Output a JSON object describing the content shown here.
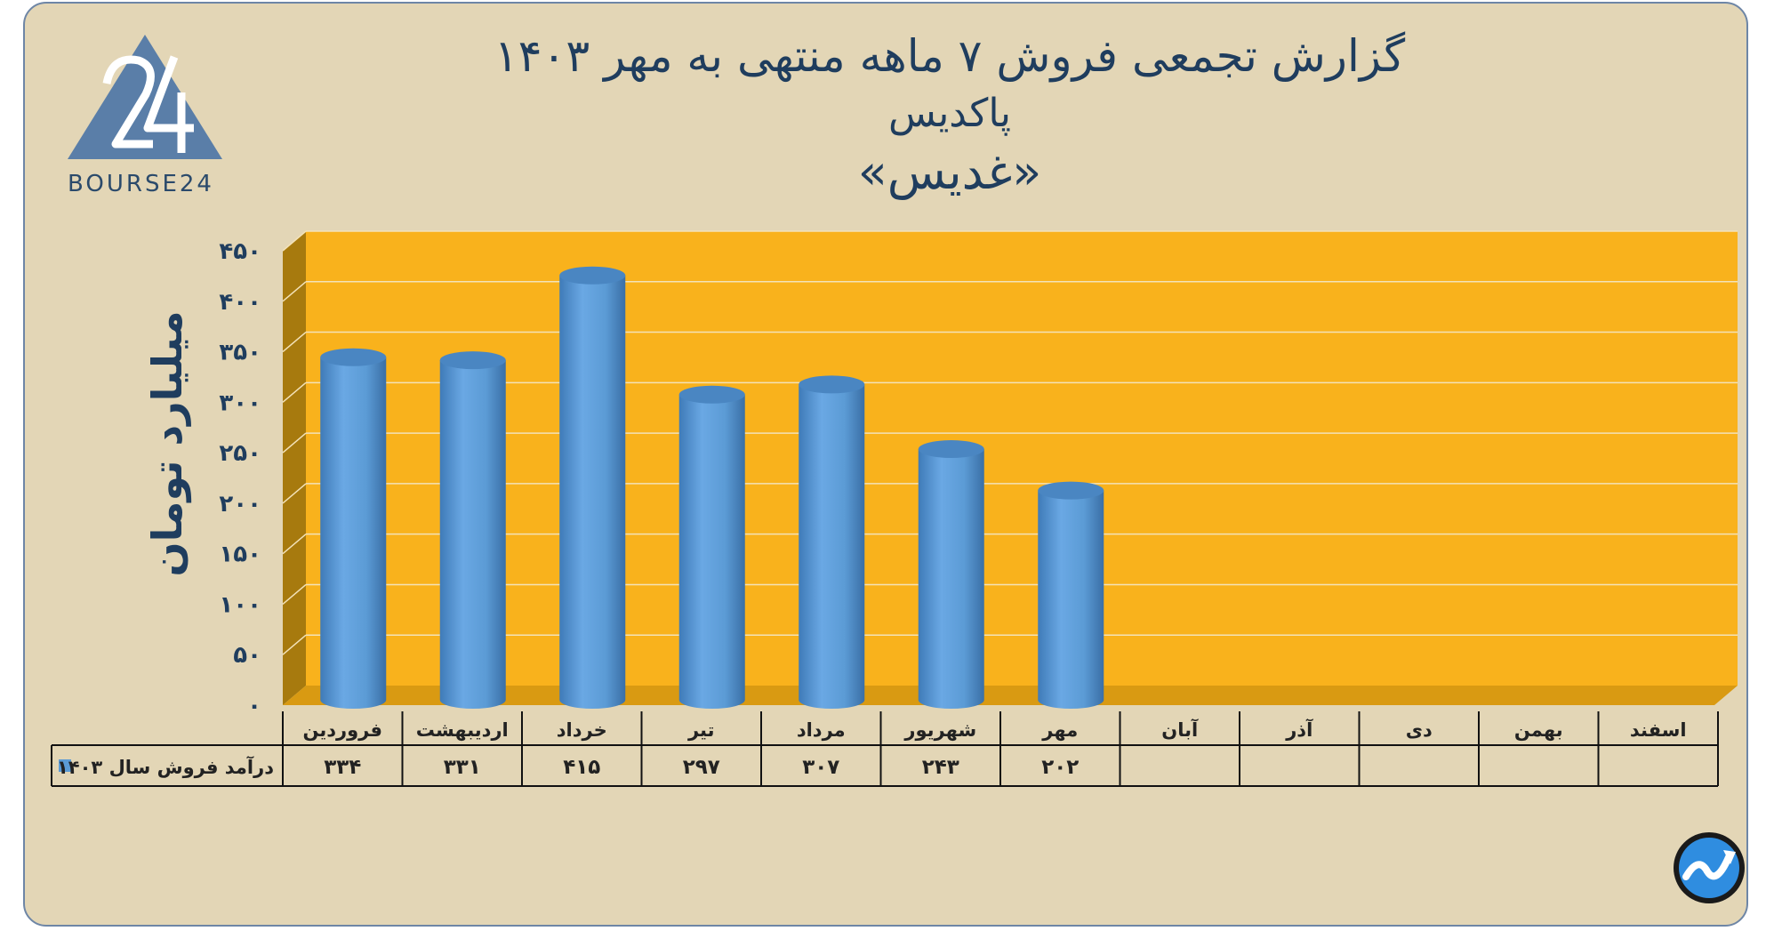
{
  "titles": {
    "line1": "گزارش تجمعی فروش ۷ ماهه منتهی به مهر ۱۴۰۳",
    "line2": "پاکدیس",
    "line3": "«غدیس»"
  },
  "brand": {
    "logo_text": "BOURSE24",
    "logo_icon": "bourse24-logo-icon",
    "watermark_icon": "trend-arrow-logo-icon"
  },
  "colors": {
    "background": "#e3d6b6",
    "plot_back": "#f9b21c",
    "plot_side": "#a77a0e",
    "bar": "#5b9bd5",
    "text": "#1f3d5e"
  },
  "chart_data": {
    "type": "bar",
    "ylabel": "میلیارد تومان",
    "ylim": [
      0,
      450
    ],
    "yticks": [
      0,
      50,
      100,
      150,
      200,
      250,
      300,
      350,
      400,
      450
    ],
    "ytick_labels": [
      "۰",
      "۵۰",
      "۱۰۰",
      "۱۵۰",
      "۲۰۰",
      "۲۵۰",
      "۳۰۰",
      "۳۵۰",
      "۴۰۰",
      "۴۵۰"
    ],
    "categories": [
      "فروردین",
      "اردیبهشت",
      "خرداد",
      "تیر",
      "مرداد",
      "شهریور",
      "مهر",
      "آبان",
      "آذر",
      "دی",
      "بهمن",
      "اسفند"
    ],
    "series": [
      {
        "name": "درآمد فروش سال ۱۴۰۳",
        "values": [
          334,
          331,
          415,
          297,
          307,
          243,
          202,
          null,
          null,
          null,
          null,
          null
        ],
        "value_labels": [
          "۳۳۴",
          "۳۳۱",
          "۴۱۵",
          "۲۹۷",
          "۳۰۷",
          "۲۴۳",
          "۲۰۲",
          "",
          "",
          "",
          "",
          ""
        ]
      }
    ],
    "grid": true,
    "legend": "data-table"
  }
}
